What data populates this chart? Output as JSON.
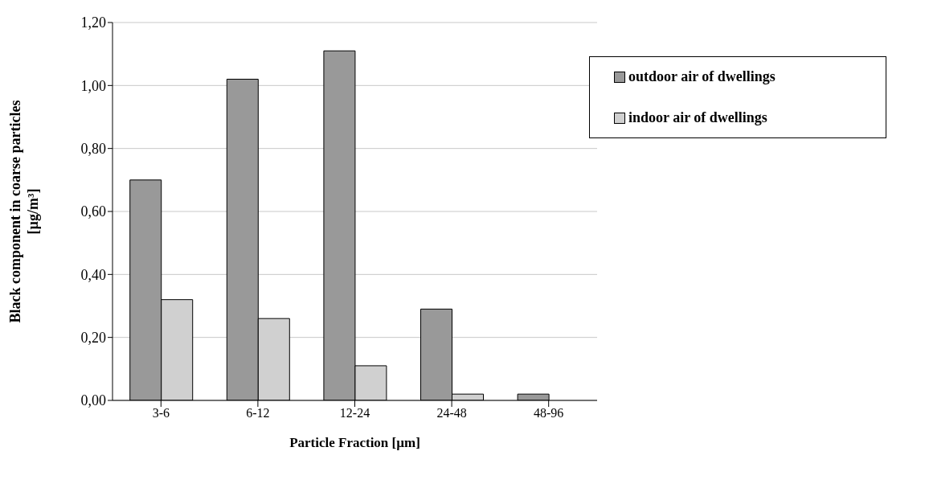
{
  "chart_data": {
    "type": "bar",
    "xlabel": "Particle Fraction [µm]",
    "ylabel": "Black component in coarse particles [µg/m³]",
    "categories": [
      "3-6",
      "6-12",
      "12-24",
      "24-48",
      "48-96"
    ],
    "series": [
      {
        "name": "outdoor air of dwellings",
        "color": "#999999",
        "values": [
          0.7,
          1.02,
          1.11,
          0.29,
          0.02
        ]
      },
      {
        "name": "indoor air of dwellings",
        "color": "#d0d0d0",
        "values": [
          0.32,
          0.26,
          0.11,
          0.02,
          0
        ]
      }
    ],
    "ylim": [
      0,
      1.2
    ],
    "yticks": [
      {
        "value": 0,
        "label": "0,00"
      },
      {
        "value": 0.2,
        "label": "0,20"
      },
      {
        "value": 0.4,
        "label": "0,40"
      },
      {
        "value": 0.6,
        "label": "0,60"
      },
      {
        "value": 0.8,
        "label": "0,80"
      },
      {
        "value": 1.0,
        "label": "1,00"
      },
      {
        "value": 1.2,
        "label": "1,20"
      }
    ],
    "grid": "y",
    "legend": "top right"
  }
}
